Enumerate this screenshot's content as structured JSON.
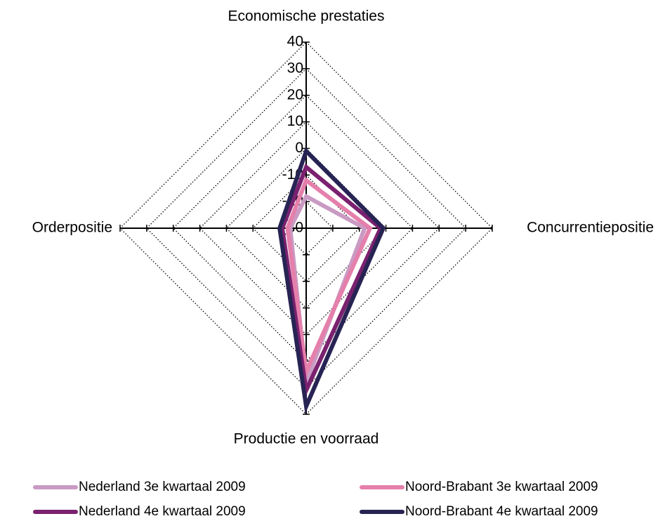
{
  "chart_data": {
    "type": "radar",
    "categories": [
      "Economische prestaties",
      "Concurrentiepositie",
      "Productie en voorraad",
      "Orderpositie"
    ],
    "ylim": [
      -30,
      40
    ],
    "yticks": [
      -30,
      -20,
      -10,
      0,
      10,
      20,
      30,
      40
    ],
    "grid": true,
    "series": [
      {
        "name": "Nederland 3e kwartaal 2009",
        "color": "#c99ac3",
        "values": [
          -18,
          -8,
          28,
          -24
        ]
      },
      {
        "name": "Noord-Brabant 3e kwartaal 2009",
        "color": "#e57fab",
        "values": [
          -12,
          -6,
          24,
          -23
        ]
      },
      {
        "name": "Nederland 4e kwartaal 2009",
        "color": "#7a216f",
        "values": [
          -7,
          -2,
          31,
          -21
        ]
      },
      {
        "name": "Noord-Brabant 4e kwartaal 2009",
        "color": "#272454",
        "values": [
          -1,
          -1,
          37,
          -20
        ]
      }
    ]
  }
}
